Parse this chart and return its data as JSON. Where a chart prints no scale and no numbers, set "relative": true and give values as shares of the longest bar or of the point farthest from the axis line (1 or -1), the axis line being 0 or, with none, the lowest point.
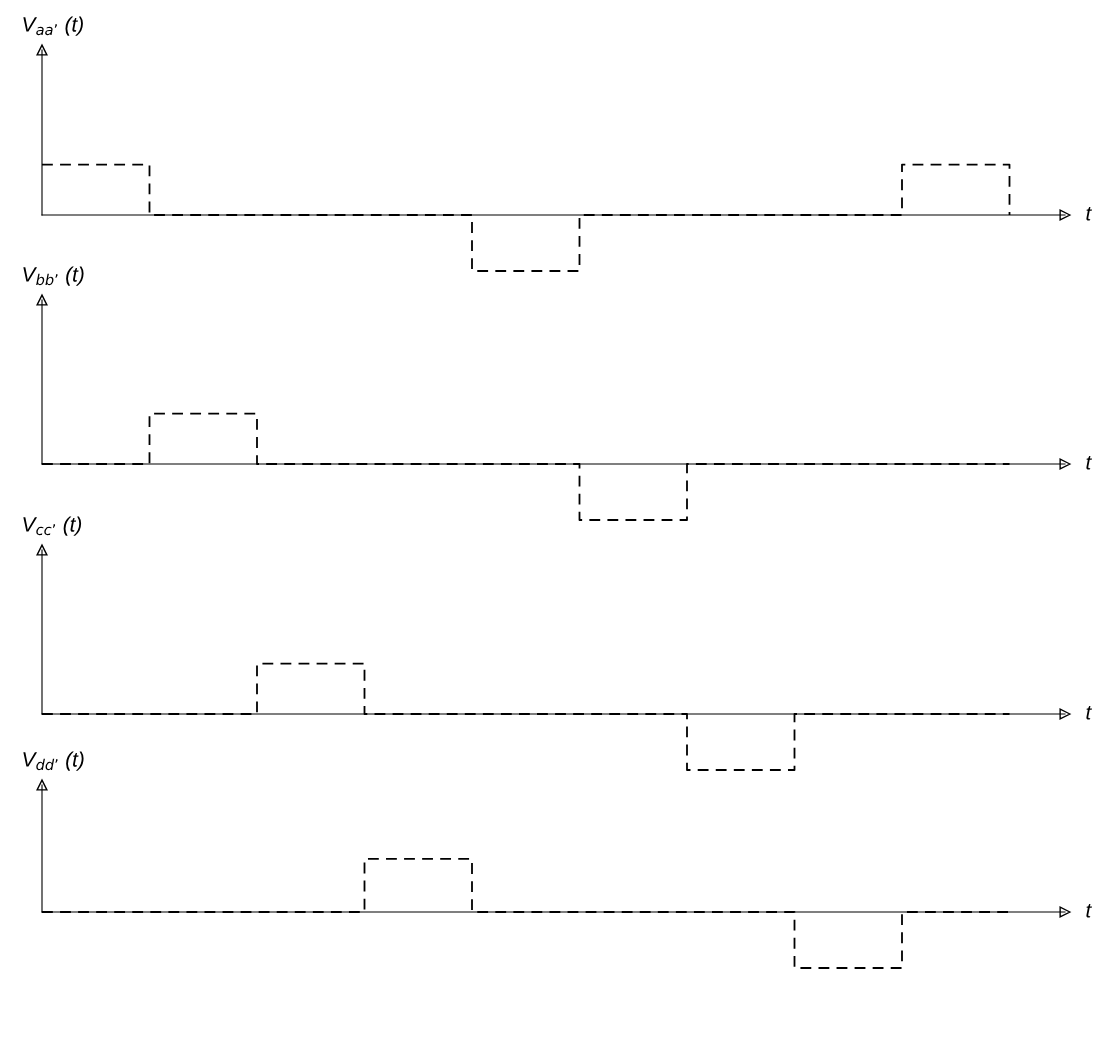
{
  "chart_data": [
    {
      "type": "step",
      "relative": true,
      "ylabel": "V$_{aa’}$ (t)",
      "xlabel": "t",
      "line_style": "dashed",
      "categories": [
        null,
        null,
        null,
        null,
        null,
        null,
        null,
        null,
        null,
        null
      ],
      "series": [
        {
          "color": "#000000",
          "values": [
            0.9,
            0,
            0,
            0,
            -1,
            0,
            0,
            0,
            0.9,
            0
          ]
        }
      ]
    },
    {
      "type": "step",
      "relative": true,
      "ylabel": "V$_{bb’}$ (t)",
      "xlabel": "t",
      "line_style": "dashed",
      "categories": [
        null,
        null,
        null,
        null,
        null,
        null,
        null,
        null,
        null,
        null
      ],
      "series": [
        {
          "color": "#000000",
          "values": [
            0,
            0.9,
            0,
            0,
            0,
            -1,
            0,
            0,
            0,
            0
          ]
        }
      ]
    },
    {
      "type": "step",
      "relative": true,
      "ylabel": "V$_{cc’}$ (t)",
      "xlabel": "t",
      "line_style": "dashed",
      "categories": [
        null,
        null,
        null,
        null,
        null,
        null,
        null,
        null,
        null,
        null
      ],
      "series": [
        {
          "color": "#000000",
          "values": [
            0,
            0,
            0.9,
            0,
            0,
            0,
            -1,
            0,
            0,
            0
          ]
        }
      ]
    },
    {
      "type": "step",
      "relative": true,
      "ylabel": "V$_{dd’}$ (t)",
      "xlabel": "t",
      "line_style": "dashed",
      "categories": [
        null,
        null,
        null,
        null,
        null,
        null,
        null,
        null,
        null,
        null
      ],
      "series": [
        {
          "color": "#000000",
          "values": [
            0,
            0,
            0,
            0.95,
            0,
            0,
            0,
            -1,
            0,
            0
          ]
        }
      ]
    }
  ]
}
